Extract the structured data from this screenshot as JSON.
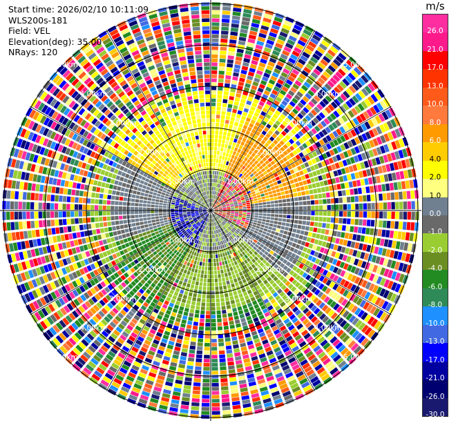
{
  "header": {
    "start_time": "Start time: 2026/02/10 10:11:09",
    "instrument": "WLS200s-181",
    "field": "Field: VEL",
    "elevation": "Elevation(deg): 35.00",
    "nrays": "NRays: 120"
  },
  "colorbar": {
    "unit": "m/s",
    "levels": [
      {
        "label": "26.0",
        "color": "#ff2ea0"
      },
      {
        "label": "21.0",
        "color": "#ff1a8c"
      },
      {
        "label": "17.0",
        "color": "#ff0000"
      },
      {
        "label": "13.0",
        "color": "#ff3300"
      },
      {
        "label": "10.0",
        "color": "#ff5a1a"
      },
      {
        "label": "8.0",
        "color": "#ff7a3c"
      },
      {
        "label": "6.0",
        "color": "#ff9a00"
      },
      {
        "label": "4.0",
        "color": "#ffcc00"
      },
      {
        "label": "2.0",
        "color": "#ffff00"
      },
      {
        "label": "1.0",
        "color": "#ffff80"
      },
      {
        "label": "0.0",
        "color": "#708090"
      },
      {
        "label": "-1.0",
        "color": "#696969"
      },
      {
        "label": "-2.0",
        "color": "#9acd32"
      },
      {
        "label": "-4.0",
        "color": "#6b8e23"
      },
      {
        "label": "-6.0",
        "color": "#228b22"
      },
      {
        "label": "-8.0",
        "color": "#2e8b57"
      },
      {
        "label": "-10.0",
        "color": "#1e90ff"
      },
      {
        "label": "-13.0",
        "color": "#4169e1"
      },
      {
        "label": "-17.0",
        "color": "#0000ff"
      },
      {
        "label": "-21.0",
        "color": "#0000a0"
      },
      {
        "label": "-26.0",
        "color": "#000070"
      },
      {
        "label": "-30.0",
        "color": "#191970"
      }
    ]
  },
  "plot": {
    "rings": [
      {
        "km": 1,
        "label": "1.00km"
      },
      {
        "km": 2,
        "label": "2.00km"
      },
      {
        "km": 3,
        "label": "3.00km"
      },
      {
        "km": 4,
        "label": "4.00km"
      },
      {
        "km": 5,
        "label": "5.00km"
      }
    ]
  }
}
